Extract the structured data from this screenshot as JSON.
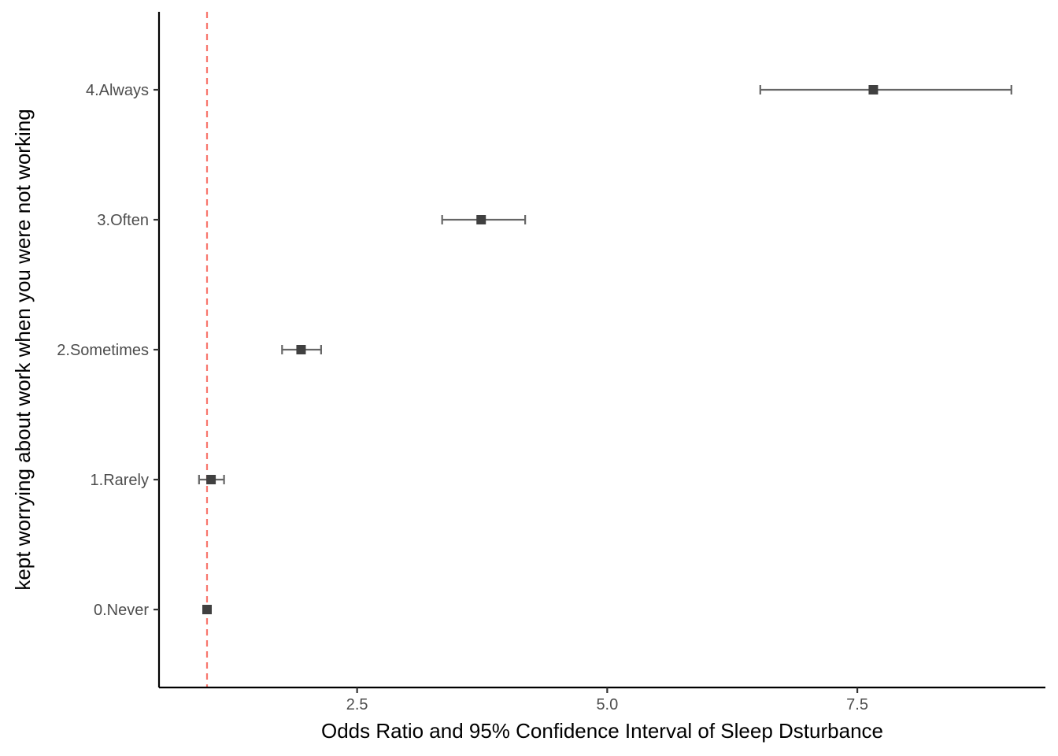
{
  "chart_data": {
    "type": "scatter",
    "subtype": "forest-plot",
    "xlabel": "Odds Ratio and 95% Confidence Interval of Sleep Dsturbance",
    "ylabel": "kept worrying about work when you were not working",
    "xlim": [
      0.52,
      9.38
    ],
    "x_ticks": [
      {
        "value": 2.5,
        "label": "2.5"
      },
      {
        "value": 5.0,
        "label": "5.0"
      },
      {
        "value": 7.5,
        "label": "7.5"
      }
    ],
    "categories": [
      "0.Never",
      "1.Rarely",
      "2.Sometimes",
      "3.Often",
      "4.Always"
    ],
    "points": [
      {
        "category": "0.Never",
        "estimate": 1.0,
        "lower": 1.0,
        "upper": 1.0
      },
      {
        "category": "1.Rarely",
        "estimate": 1.04,
        "lower": 0.92,
        "upper": 1.17
      },
      {
        "category": "2.Sometimes",
        "estimate": 1.94,
        "lower": 1.75,
        "upper": 2.14
      },
      {
        "category": "3.Often",
        "estimate": 3.74,
        "lower": 3.35,
        "upper": 4.18
      },
      {
        "category": "4.Always",
        "estimate": 7.66,
        "lower": 6.53,
        "upper": 9.04
      }
    ],
    "reference_line": {
      "value": 1.0,
      "style": "dashed",
      "color": "#F8766D"
    },
    "grid": false,
    "colors": {
      "point": "#404040",
      "errorbar": "#666666",
      "axis": "#000000"
    }
  }
}
